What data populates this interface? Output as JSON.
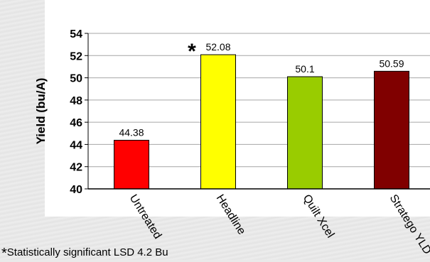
{
  "chart_data": {
    "type": "bar",
    "categories": [
      "Untreated",
      "Headline",
      "Quilt Xcel",
      "Stratego YLD"
    ],
    "values": [
      44.38,
      52.08,
      50.1,
      50.59
    ],
    "value_labels": [
      "44.38",
      "52.08",
      "50.1",
      "50.59"
    ],
    "bar_colors": [
      "#ff0000",
      "#ffff00",
      "#99cc00",
      "#800000"
    ],
    "ylabel": "Yield (bu/A)",
    "ylim": [
      40,
      54
    ],
    "yticks": [
      "40",
      "42",
      "44",
      "46",
      "48",
      "50",
      "52",
      "54"
    ],
    "significance_marker": "*",
    "significant_category": "Headline",
    "grid": true
  },
  "footnote": {
    "marker": "*",
    "text": "Statistically significant LSD 4.2 Bu"
  }
}
